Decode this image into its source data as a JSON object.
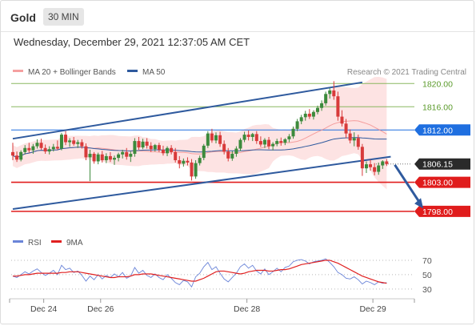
{
  "header": {
    "symbol": "Gold",
    "timeframe_button": "30 MIN"
  },
  "datetime": "Wednesday, December 29, 2021 12:37:05 AM CET",
  "colors": {
    "up": "#3c8a3c",
    "down": "#d83a3a",
    "ma50": "#2f5a9e",
    "bollinger_fill": "#fde3e3",
    "ma20": "#f28c8c",
    "rsi": "#6a84d8",
    "rsi_ma": "#e02020",
    "level_red": "#e01c1c",
    "level_blue": "#1f6fe0",
    "level_green": "#8ab860",
    "last_price": "#2a2a2a"
  },
  "chart_data": [
    {
      "type": "candlestick",
      "legend": [
        {
          "name": "MA 20 + Bollinger Bands",
          "color": "#f5a0a0"
        },
        {
          "name": "MA 50",
          "color": "#2f5a9e"
        }
      ],
      "credit": "Research © 2021 Trading Central",
      "ylim": [
        1795.5,
        1821.0
      ],
      "x_ticks": [
        {
          "label": "Dec 24",
          "i": 8
        },
        {
          "label": "Dec 26",
          "i": 22
        },
        {
          "label": "Dec 28",
          "i": 58
        },
        {
          "label": "Dec 29",
          "i": 89
        }
      ],
      "levels": [
        {
          "label": "1820.00",
          "value": 1820.0,
          "kind": "green"
        },
        {
          "label": "1816.00",
          "value": 1816.0,
          "kind": "green"
        },
        {
          "label": "1812.00",
          "value": 1812.0,
          "kind": "blue"
        },
        {
          "label": "1806.15",
          "value": 1806.15,
          "kind": "last"
        },
        {
          "label": "1803.00",
          "value": 1803.0,
          "kind": "red"
        },
        {
          "label": "1798.00",
          "value": 1798.0,
          "kind": "red"
        }
      ],
      "trend_channel": {
        "upper": [
          {
            "i": 0,
            "value": 1810.5
          },
          {
            "i": 86,
            "value": 1820.2
          }
        ],
        "lower": [
          {
            "i": 0,
            "value": 1798.4
          },
          {
            "i": 93,
            "value": 1807.4
          }
        ]
      },
      "forecast_arrow": {
        "from": {
          "i": 94,
          "value": 1806.0
        },
        "to": {
          "i": 101,
          "value": 1798.5
        }
      },
      "candles": [
        [
          1808.2,
          1809.8,
          1806.8,
          1807.6
        ],
        [
          1807.6,
          1808.3,
          1806.5,
          1806.9
        ],
        [
          1806.9,
          1808.5,
          1806.6,
          1808.2
        ],
        [
          1808.2,
          1809.4,
          1807.8,
          1808.9
        ],
        [
          1808.9,
          1809.8,
          1808.1,
          1808.5
        ],
        [
          1808.5,
          1809.6,
          1807.9,
          1809.2
        ],
        [
          1809.2,
          1810.4,
          1808.8,
          1809.8
        ],
        [
          1809.8,
          1810.5,
          1808.6,
          1808.9
        ],
        [
          1808.9,
          1809.5,
          1807.9,
          1808.3
        ],
        [
          1808.3,
          1809.2,
          1807.8,
          1808.7
        ],
        [
          1808.7,
          1809.6,
          1808.3,
          1809.1
        ],
        [
          1809.1,
          1810.2,
          1808.6,
          1808.8
        ],
        [
          1808.8,
          1811.5,
          1808.5,
          1811.2
        ],
        [
          1811.2,
          1811.8,
          1809.4,
          1809.9
        ],
        [
          1809.9,
          1810.6,
          1809.1,
          1810.2
        ],
        [
          1810.2,
          1810.8,
          1809.3,
          1809.6
        ],
        [
          1809.6,
          1810.3,
          1808.9,
          1809.9
        ],
        [
          1809.9,
          1810.4,
          1808.8,
          1809.2
        ],
        [
          1809.2,
          1809.7,
          1806.8,
          1807.3
        ],
        [
          1807.3,
          1808.6,
          1803.2,
          1807.9
        ],
        [
          1807.9,
          1808.2,
          1806.2,
          1806.6
        ],
        [
          1806.6,
          1808.1,
          1806.1,
          1807.8
        ],
        [
          1807.8,
          1808.4,
          1806.4,
          1806.8
        ],
        [
          1806.8,
          1808.0,
          1806.3,
          1807.5
        ],
        [
          1807.5,
          1808.2,
          1806.5,
          1806.9
        ],
        [
          1806.9,
          1807.6,
          1806.0,
          1807.2
        ],
        [
          1807.2,
          1808.1,
          1806.6,
          1807.8
        ],
        [
          1807.8,
          1808.6,
          1807.1,
          1808.2
        ],
        [
          1808.2,
          1808.9,
          1806.9,
          1807.4
        ],
        [
          1807.4,
          1808.3,
          1806.5,
          1807.9
        ],
        [
          1807.9,
          1810.6,
          1807.4,
          1810.1
        ],
        [
          1810.1,
          1810.8,
          1808.6,
          1809.0
        ],
        [
          1809.0,
          1810.5,
          1808.7,
          1810.0
        ],
        [
          1810.0,
          1810.6,
          1808.8,
          1809.3
        ],
        [
          1809.3,
          1809.9,
          1808.2,
          1808.7
        ],
        [
          1808.7,
          1809.6,
          1808.3,
          1809.4
        ],
        [
          1809.4,
          1809.8,
          1808.2,
          1808.6
        ],
        [
          1808.6,
          1809.3,
          1807.6,
          1808.0
        ],
        [
          1808.0,
          1809.2,
          1807.5,
          1808.9
        ],
        [
          1808.9,
          1809.4,
          1807.8,
          1808.2
        ],
        [
          1808.2,
          1808.9,
          1806.4,
          1806.8
        ],
        [
          1806.8,
          1807.5,
          1805.4,
          1806.2
        ],
        [
          1806.2,
          1807.1,
          1805.7,
          1806.7
        ],
        [
          1806.7,
          1807.3,
          1805.9,
          1806.4
        ],
        [
          1806.4,
          1807.0,
          1803.3,
          1804.0
        ],
        [
          1804.0,
          1806.8,
          1803.6,
          1806.3
        ],
        [
          1806.3,
          1807.6,
          1805.9,
          1807.2
        ],
        [
          1807.2,
          1809.6,
          1806.8,
          1809.3
        ],
        [
          1809.3,
          1811.8,
          1808.9,
          1811.4
        ],
        [
          1811.4,
          1812.2,
          1809.8,
          1810.2
        ],
        [
          1810.2,
          1811.6,
          1809.7,
          1811.1
        ],
        [
          1811.1,
          1811.7,
          1809.1,
          1809.6
        ],
        [
          1809.6,
          1810.2,
          1807.8,
          1808.3
        ],
        [
          1808.3,
          1808.9,
          1806.6,
          1807.1
        ],
        [
          1807.1,
          1808.4,
          1806.7,
          1807.9
        ],
        [
          1807.9,
          1809.2,
          1807.4,
          1808.8
        ],
        [
          1808.8,
          1810.6,
          1808.4,
          1810.3
        ],
        [
          1810.3,
          1811.7,
          1809.9,
          1811.2
        ],
        [
          1811.2,
          1811.9,
          1810.2,
          1810.8
        ],
        [
          1810.8,
          1811.5,
          1810.1,
          1811.3
        ],
        [
          1811.3,
          1811.8,
          1809.6,
          1810.1
        ],
        [
          1810.1,
          1810.9,
          1809.1,
          1809.5
        ],
        [
          1809.5,
          1810.6,
          1808.9,
          1810.3
        ],
        [
          1810.3,
          1810.8,
          1808.7,
          1809.2
        ],
        [
          1809.2,
          1809.9,
          1808.5,
          1809.6
        ],
        [
          1809.6,
          1810.5,
          1809.2,
          1810.1
        ],
        [
          1810.1,
          1810.7,
          1809.3,
          1809.8
        ],
        [
          1809.8,
          1810.6,
          1809.4,
          1810.4
        ],
        [
          1810.4,
          1811.3,
          1809.9,
          1810.9
        ],
        [
          1810.9,
          1812.6,
          1810.5,
          1812.2
        ],
        [
          1812.2,
          1813.9,
          1811.8,
          1813.5
        ],
        [
          1813.5,
          1814.6,
          1813.0,
          1814.2
        ],
        [
          1814.2,
          1815.3,
          1813.6,
          1814.8
        ],
        [
          1814.8,
          1815.6,
          1813.9,
          1814.3
        ],
        [
          1814.3,
          1815.4,
          1813.8,
          1815.1
        ],
        [
          1815.1,
          1816.2,
          1814.7,
          1815.8
        ],
        [
          1815.8,
          1817.1,
          1815.3,
          1816.6
        ],
        [
          1816.6,
          1818.6,
          1816.2,
          1818.2
        ],
        [
          1818.2,
          1819.2,
          1817.4,
          1818.8
        ],
        [
          1818.8,
          1820.4,
          1817.2,
          1817.8
        ],
        [
          1817.8,
          1818.6,
          1813.6,
          1814.3
        ],
        [
          1814.3,
          1815.4,
          1812.6,
          1813.1
        ],
        [
          1813.1,
          1813.9,
          1810.6,
          1811.4
        ],
        [
          1811.4,
          1812.1,
          1809.7,
          1810.2
        ],
        [
          1810.2,
          1811.6,
          1809.2,
          1810.6
        ],
        [
          1810.6,
          1811.2,
          1808.6,
          1809.1
        ],
        [
          1809.1,
          1809.6,
          1804.1,
          1805.4
        ],
        [
          1805.4,
          1806.6,
          1804.6,
          1806.1
        ],
        [
          1806.1,
          1806.9,
          1805.0,
          1805.6
        ],
        [
          1805.6,
          1806.3,
          1804.2,
          1804.8
        ],
        [
          1804.8,
          1806.4,
          1804.3,
          1805.9
        ],
        [
          1805.9,
          1806.8,
          1805.3,
          1806.6
        ],
        [
          1806.6,
          1807.0,
          1805.8,
          1806.15
        ]
      ]
    },
    {
      "type": "line",
      "legend": [
        {
          "name": "RSI",
          "color": "#6a84d8"
        },
        {
          "name": "9MA",
          "color": "#e02020"
        }
      ],
      "ylim": [
        22,
        80
      ],
      "y_ticks": [
        70,
        50,
        30
      ],
      "series": [
        {
          "name": "RSI",
          "values": [
            48,
            46,
            50,
            54,
            51,
            55,
            58,
            53,
            49,
            52,
            56,
            50,
            63,
            57,
            59,
            53,
            55,
            49,
            41,
            48,
            43,
            50,
            44,
            49,
            46,
            51,
            47,
            53,
            45,
            48,
            60,
            52,
            56,
            49,
            46,
            51,
            46,
            43,
            50,
            45,
            39,
            36,
            42,
            40,
            33,
            47,
            52,
            61,
            67,
            57,
            61,
            52,
            44,
            40,
            46,
            52,
            61,
            65,
            59,
            63,
            55,
            51,
            58,
            50,
            54,
            59,
            54,
            60,
            62,
            68,
            70,
            71,
            69,
            65,
            68,
            69,
            70,
            72,
            67,
            61,
            53,
            50,
            45,
            44,
            47,
            43,
            37,
            41,
            39,
            36,
            40,
            38,
            39
          ]
        },
        {
          "name": "9MA",
          "values": [
            48,
            48,
            49,
            50,
            50,
            51,
            52,
            52,
            52,
            52,
            52,
            52,
            53,
            53,
            54,
            54,
            54,
            53,
            52,
            51,
            50,
            49,
            48,
            47,
            46,
            46,
            47,
            47,
            47,
            48,
            50,
            50,
            51,
            51,
            51,
            50,
            49,
            48,
            47,
            46,
            45,
            44,
            43,
            42,
            41,
            41,
            43,
            45,
            48,
            51,
            54,
            55,
            55,
            54,
            53,
            52,
            51,
            52,
            54,
            55,
            56,
            56,
            56,
            55,
            55,
            56,
            57,
            57,
            58,
            60,
            62,
            64,
            65,
            66,
            67,
            68,
            69,
            70,
            70,
            68,
            66,
            63,
            60,
            57,
            54,
            51,
            48,
            46,
            44,
            42,
            40,
            39,
            38
          ]
        }
      ]
    }
  ]
}
